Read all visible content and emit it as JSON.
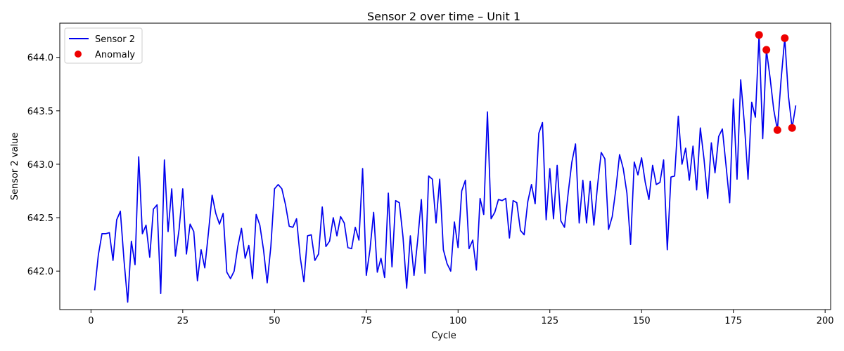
{
  "chart_data": {
    "type": "line",
    "title": "Sensor 2 over time – Unit 1",
    "xlabel": "Cycle",
    "ylabel": "Sensor 2 value",
    "xlim": [
      -8.5,
      201.5
    ],
    "ylim": [
      641.64,
      644.32
    ],
    "xticks": [
      0,
      25,
      50,
      75,
      100,
      125,
      150,
      175,
      200
    ],
    "yticks": [
      642.0,
      642.5,
      643.0,
      643.5,
      644.0
    ],
    "xtick_labels": [
      "0",
      "25",
      "50",
      "75",
      "100",
      "125",
      "150",
      "175",
      "200"
    ],
    "ytick_labels": [
      "642.0",
      "642.5",
      "643.0",
      "643.5",
      "644.0"
    ],
    "grid": false,
    "legend_position": "top-left",
    "series": [
      {
        "name": "Sensor 2",
        "color": "#0000ee",
        "kind": "line",
        "x": [
          1,
          2,
          3,
          4,
          5,
          6,
          7,
          8,
          9,
          10,
          11,
          12,
          13,
          14,
          15,
          16,
          17,
          18,
          19,
          20,
          21,
          22,
          23,
          24,
          25,
          26,
          27,
          28,
          29,
          30,
          31,
          32,
          33,
          34,
          35,
          36,
          37,
          38,
          39,
          40,
          41,
          42,
          43,
          44,
          45,
          46,
          47,
          48,
          49,
          50,
          51,
          52,
          53,
          54,
          55,
          56,
          57,
          58,
          59,
          60,
          61,
          62,
          63,
          64,
          65,
          66,
          67,
          68,
          69,
          70,
          71,
          72,
          73,
          74,
          75,
          76,
          77,
          78,
          79,
          80,
          81,
          82,
          83,
          84,
          85,
          86,
          87,
          88,
          89,
          90,
          91,
          92,
          93,
          94,
          95,
          96,
          97,
          98,
          99,
          100,
          101,
          102,
          103,
          104,
          105,
          106,
          107,
          108,
          109,
          110,
          111,
          112,
          113,
          114,
          115,
          116,
          117,
          118,
          119,
          120,
          121,
          122,
          123,
          124,
          125,
          126,
          127,
          128,
          129,
          130,
          131,
          132,
          133,
          134,
          135,
          136,
          137,
          138,
          139,
          140,
          141,
          142,
          143,
          144,
          145,
          146,
          147,
          148,
          149,
          150,
          151,
          152,
          153,
          154,
          155,
          156,
          157,
          158,
          159,
          160,
          161,
          162,
          163,
          164,
          165,
          166,
          167,
          168,
          169,
          170,
          171,
          172,
          173,
          174,
          175,
          176,
          177,
          178,
          179,
          180,
          181,
          182,
          183,
          184,
          185,
          186,
          187,
          188,
          189,
          190,
          191,
          192
        ],
        "y": [
          641.82,
          642.15,
          642.35,
          642.35,
          642.36,
          642.1,
          642.48,
          642.56,
          642.1,
          641.71,
          642.28,
          642.06,
          643.07,
          642.35,
          642.43,
          642.13,
          642.58,
          642.62,
          641.79,
          643.04,
          642.37,
          642.77,
          642.14,
          642.39,
          642.77,
          642.16,
          642.44,
          642.37,
          641.91,
          642.2,
          642.03,
          642.36,
          642.71,
          642.54,
          642.44,
          642.54,
          641.99,
          641.93,
          642.0,
          642.23,
          642.4,
          642.12,
          642.24,
          641.93,
          642.53,
          642.43,
          642.2,
          641.89,
          642.23,
          642.77,
          642.81,
          642.77,
          642.62,
          642.42,
          642.41,
          642.49,
          642.13,
          641.9,
          642.33,
          642.34,
          642.1,
          642.16,
          642.6,
          642.23,
          642.28,
          642.5,
          642.33,
          642.51,
          642.45,
          642.22,
          642.21,
          642.41,
          642.29,
          642.96,
          641.96,
          642.2,
          642.55,
          641.99,
          642.12,
          641.94,
          642.73,
          642.04,
          642.66,
          642.64,
          642.32,
          641.84,
          642.33,
          641.96,
          642.29,
          642.67,
          641.98,
          642.89,
          642.86,
          642.45,
          642.86,
          642.2,
          642.07,
          642.0,
          642.46,
          642.22,
          642.75,
          642.85,
          642.21,
          642.29,
          642.01,
          642.68,
          642.53,
          643.49,
          642.49,
          642.55,
          642.67,
          642.66,
          642.68,
          642.31,
          642.66,
          642.64,
          642.38,
          642.34,
          642.65,
          642.81,
          642.63,
          643.29,
          643.39,
          642.48,
          642.96,
          642.49,
          642.99,
          642.47,
          642.41,
          642.73,
          643.02,
          643.19,
          642.45,
          642.85,
          642.45,
          642.84,
          642.43,
          642.8,
          643.11,
          643.05,
          642.39,
          642.51,
          642.77,
          643.09,
          642.96,
          642.73,
          642.25,
          643.02,
          642.9,
          643.06,
          642.83,
          642.67,
          642.99,
          642.81,
          642.83,
          643.04,
          642.2,
          642.88,
          642.89,
          643.45,
          643.0,
          643.15,
          642.85,
          643.17,
          642.76,
          643.34,
          643.05,
          642.68,
          643.2,
          642.92,
          643.26,
          643.33,
          642.99,
          642.64,
          643.61,
          642.86,
          643.79,
          643.38,
          642.86,
          643.58,
          643.44,
          644.21,
          643.24,
          644.07,
          643.81,
          643.51,
          643.32,
          643.79,
          644.18,
          643.64,
          643.34,
          643.55
        ]
      },
      {
        "name": "Anomaly",
        "color": "#ee0000",
        "kind": "scatter",
        "x": [
          182,
          184,
          187,
          189,
          191
        ],
        "y": [
          644.21,
          644.07,
          643.32,
          644.18,
          643.34
        ]
      }
    ]
  }
}
